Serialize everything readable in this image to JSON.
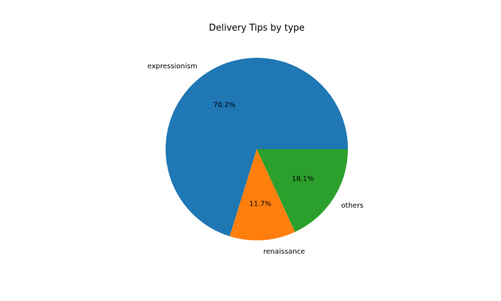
{
  "chart_data": {
    "type": "pie",
    "title": "Delivery Tips by type",
    "categories": [
      "expressionism",
      "renaissance",
      "others"
    ],
    "values": [
      70.2,
      11.7,
      18.1
    ],
    "value_labels": [
      "70.2%",
      "11.7%",
      "18.1%"
    ],
    "colors": [
      "#1f77b4",
      "#ff7f0e",
      "#2ca02c"
    ],
    "start_angle_deg": 0,
    "direction": "counterclockwise",
    "legend": "none"
  }
}
